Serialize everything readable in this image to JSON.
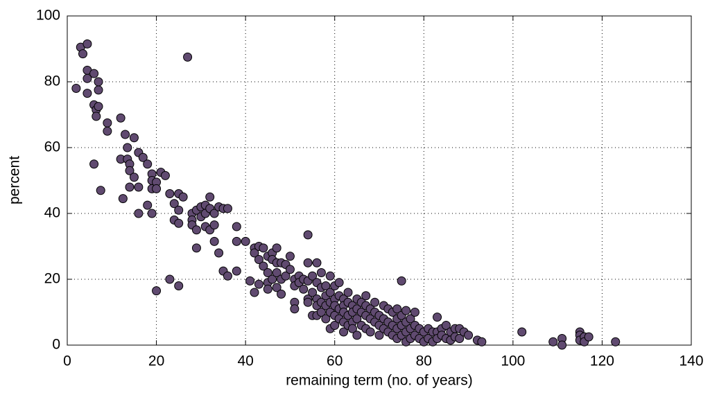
{
  "chart_data": {
    "type": "scatter",
    "xlabel": "remaining term (no. of years)",
    "ylabel": "percent",
    "color": "#604a70",
    "edgecolor": "#000000",
    "grid": true,
    "xlim": [
      0,
      140
    ],
    "ylim": [
      0,
      100
    ],
    "xticks": [
      0,
      20,
      40,
      60,
      80,
      100,
      120,
      140
    ],
    "yticks": [
      0,
      20,
      40,
      60,
      80,
      100
    ],
    "x": [
      2,
      3,
      3.5,
      4.5,
      4.5,
      4.5,
      4.5,
      6,
      6,
      6.5,
      6.5,
      7,
      7,
      7,
      6,
      7.5,
      9,
      9,
      12,
      12,
      12.5,
      13,
      13.5,
      13.5,
      14,
      14,
      14,
      15,
      15,
      16,
      16,
      16,
      17,
      18,
      18,
      19,
      19,
      19,
      19,
      20,
      20,
      20,
      21,
      22,
      23,
      23,
      24,
      24,
      25,
      25,
      25,
      25,
      26,
      27,
      28,
      28,
      28,
      29,
      29,
      29,
      30,
      30,
      31,
      31,
      31,
      32,
      32,
      32,
      33,
      33,
      33,
      34,
      34,
      35,
      35,
      36,
      36,
      38,
      38,
      38,
      40,
      41,
      42,
      42,
      42,
      43,
      43,
      43,
      44,
      44,
      45,
      45,
      45,
      45,
      46,
      46,
      46,
      47,
      47,
      47,
      47,
      48,
      48,
      48,
      49,
      49,
      50,
      50,
      51,
      51,
      51,
      51,
      52,
      52,
      53,
      53,
      54,
      54,
      54,
      54,
      54,
      55,
      55,
      55,
      56,
      56,
      56,
      56,
      56,
      57,
      57,
      57,
      57,
      58,
      58,
      58,
      58,
      59,
      59,
      59,
      59,
      59,
      60,
      60,
      60,
      60,
      60,
      61,
      61,
      61,
      61,
      62,
      62,
      62,
      62,
      62,
      63,
      63,
      63,
      63,
      64,
      64,
      64,
      64,
      65,
      65,
      65,
      65,
      66,
      66,
      66,
      67,
      67,
      67,
      67,
      68,
      68,
      68,
      69,
      69,
      69,
      70,
      70,
      70,
      71,
      71,
      71,
      72,
      72,
      72,
      73,
      73,
      73,
      74,
      74,
      74,
      74,
      75,
      75,
      75,
      75,
      76,
      76,
      76,
      76,
      77,
      77,
      77,
      78,
      78,
      78,
      79,
      79,
      80,
      80,
      81,
      81,
      82,
      82,
      83,
      83,
      83,
      84,
      84,
      85,
      85,
      86,
      86,
      87,
      87,
      88,
      88,
      89,
      90,
      92,
      93,
      102,
      109,
      111,
      111,
      115,
      115,
      115,
      116,
      116,
      117,
      123
    ],
    "values": [
      78,
      90.5,
      88.5,
      91.5,
      83.5,
      81,
      76.5,
      82.5,
      73,
      71.5,
      69.5,
      72.5,
      77.5,
      80,
      55,
      47,
      67.5,
      65,
      69,
      56.5,
      44.5,
      64,
      60,
      56.5,
      55,
      53,
      48,
      63,
      51,
      58.5,
      48,
      40,
      57,
      55,
      42.5,
      52,
      50,
      47.5,
      40,
      49.5,
      47.5,
      16.5,
      52.5,
      51.5,
      46,
      20,
      43,
      38,
      46,
      41,
      37,
      18,
      45,
      87.5,
      40,
      38,
      36.5,
      41,
      35,
      29.5,
      42,
      39,
      42.5,
      40,
      36,
      45,
      41.5,
      35,
      36.5,
      31.5,
      40,
      42,
      28,
      41.5,
      22.5,
      41.5,
      21,
      36,
      31.5,
      22.5,
      31.5,
      19.5,
      29.5,
      28,
      16,
      30,
      26,
      18.5,
      29.5,
      24,
      27,
      22,
      19,
      17,
      28,
      26,
      20,
      29.5,
      25,
      22,
      17.5,
      25,
      20,
      15.5,
      24.5,
      21,
      27,
      23,
      20,
      18,
      13,
      11,
      21,
      19,
      20,
      17,
      33.5,
      25,
      19.5,
      14,
      13,
      21,
      16,
      9,
      25,
      19,
      14,
      12,
      9,
      22,
      17.5,
      13,
      10,
      18,
      15,
      12,
      8,
      21,
      16,
      13,
      10,
      5,
      18,
      14,
      12,
      9,
      6,
      19,
      15,
      11,
      8,
      14,
      12,
      10,
      7,
      4,
      16,
      13,
      9,
      6,
      12,
      10,
      7,
      5,
      14,
      11,
      8,
      3,
      13,
      10,
      6,
      15,
      12,
      9,
      5,
      11,
      8,
      4,
      13,
      10,
      7,
      9,
      6,
      3,
      12,
      8,
      5,
      11,
      7,
      4,
      10,
      6,
      3,
      11,
      8,
      5,
      2,
      19.5,
      9,
      6,
      3,
      10.5,
      7,
      4,
      1,
      8,
      5,
      2,
      10,
      6,
      3,
      5,
      2,
      4,
      1,
      5,
      2,
      4,
      1,
      8.5,
      4,
      2,
      5,
      3,
      6,
      2,
      4,
      1.5,
      5,
      2.5,
      5,
      2,
      4,
      3,
      1.5,
      1,
      4,
      1,
      2,
      0,
      4,
      3,
      1.5,
      2.5,
      1,
      2.5,
      1
    ]
  }
}
